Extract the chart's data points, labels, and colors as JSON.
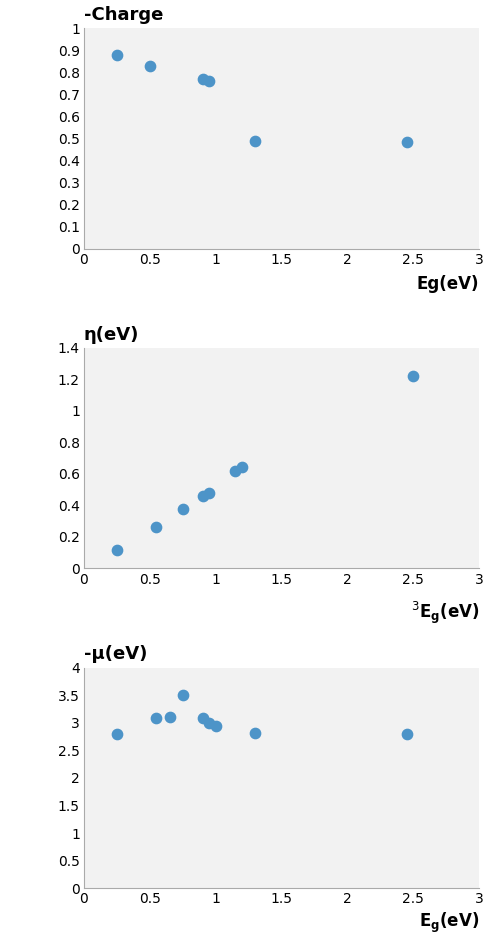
{
  "chart1": {
    "title": "-Charge",
    "xlabel": "Eg(eV)",
    "x": [
      0.25,
      0.5,
      0.9,
      0.95,
      1.3,
      2.45
    ],
    "y": [
      0.88,
      0.83,
      0.77,
      0.76,
      0.49,
      0.485
    ],
    "xlim": [
      0,
      3
    ],
    "ylim": [
      0,
      1
    ],
    "xticks": [
      0,
      0.5,
      1,
      1.5,
      2,
      2.5,
      3
    ],
    "yticks": [
      0,
      0.1,
      0.2,
      0.3,
      0.4,
      0.5,
      0.6,
      0.7,
      0.8,
      0.9,
      1
    ],
    "ytick_labels": [
      "0",
      "0.1",
      "0.2",
      "0.3",
      "0.4",
      "0.5",
      "0.6",
      "0.7",
      "0.8",
      "0.9",
      "1"
    ],
    "xtick_labels": [
      "0",
      "0.5",
      "1",
      "1.5",
      "2",
      "2.5",
      "3"
    ]
  },
  "chart2": {
    "title": "η(eV)",
    "xlabel_pre": "3",
    "xlabel_main": "E₉(eV)",
    "x": [
      0.25,
      0.55,
      0.75,
      0.9,
      0.95,
      1.15,
      1.2,
      2.5
    ],
    "y": [
      0.12,
      0.26,
      0.38,
      0.46,
      0.48,
      0.62,
      0.645,
      1.22
    ],
    "xlim": [
      0,
      3
    ],
    "ylim": [
      0,
      1.4
    ],
    "xticks": [
      0,
      0.5,
      1,
      1.5,
      2,
      2.5,
      3
    ],
    "yticks": [
      0,
      0.2,
      0.4,
      0.6,
      0.8,
      1.0,
      1.2,
      1.4
    ],
    "ytick_labels": [
      "0",
      "0.2",
      "0.4",
      "0.6",
      "0.8",
      "1",
      "1.2",
      "1.4"
    ],
    "xtick_labels": [
      "0",
      "0.5",
      "1",
      "1.5",
      "2",
      "2.5",
      "3"
    ]
  },
  "chart3": {
    "title": "-μ(eV)",
    "xlabel_main": "E₉(eV)",
    "x": [
      0.25,
      0.55,
      0.65,
      0.75,
      0.9,
      0.95,
      1.0,
      1.3,
      2.45
    ],
    "y": [
      2.8,
      3.08,
      3.1,
      3.5,
      3.08,
      3.0,
      2.95,
      2.82,
      2.8
    ],
    "xlim": [
      0,
      3
    ],
    "ylim": [
      0,
      4
    ],
    "xticks": [
      0,
      0.5,
      1,
      1.5,
      2,
      2.5,
      3
    ],
    "yticks": [
      0,
      0.5,
      1.0,
      1.5,
      2.0,
      2.5,
      3.0,
      3.5,
      4.0
    ],
    "ytick_labels": [
      "0",
      "0.5",
      "1",
      "1.5",
      "2",
      "2.5",
      "3",
      "3.5",
      "4"
    ],
    "xtick_labels": [
      "0",
      "0.5",
      "1",
      "1.5",
      "2",
      "2.5",
      "3"
    ]
  },
  "dot_color": "#4D94C8",
  "dot_size": 55,
  "bg_color": "#FFFFFF",
  "panel_bg": "#F2F2F2"
}
